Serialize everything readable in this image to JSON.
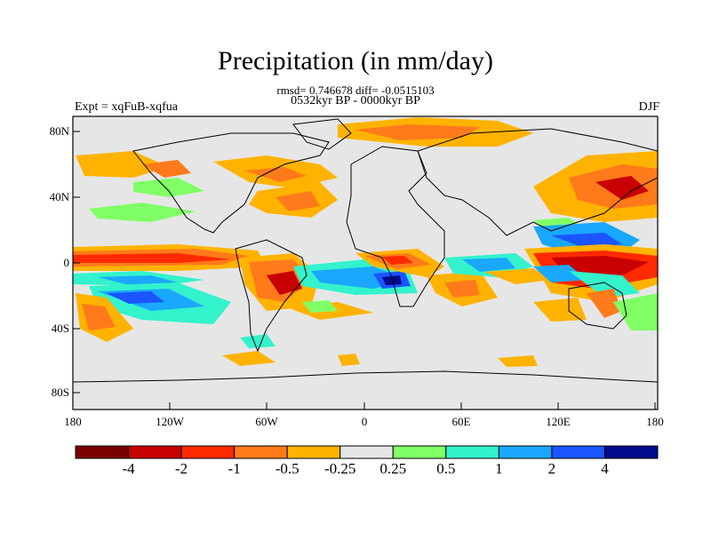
{
  "title": "Precipitation (in mm/day)",
  "subtitle_stats": "rmsd= 0.746678 diff= -0.0515103",
  "subtitle_period": "0532kyr BP - 0000kyr BP",
  "left_label": "Expt = xqFuB-xqfua",
  "right_label": "DJF",
  "y_ticks": [
    "80N",
    "40N",
    "0",
    "40S",
    "80S"
  ],
  "x_ticks": [
    "180",
    "120W",
    "60W",
    "0",
    "60E",
    "120E",
    "180"
  ],
  "colorbar": {
    "colors": [
      "#7a0000",
      "#c80000",
      "#ff2a00",
      "#ff7a1a",
      "#ffb300",
      "#e6e6e6",
      "#80ff66",
      "#33f2cc",
      "#1aa8ff",
      "#1a55ff",
      "#000a8c"
    ],
    "labels": [
      "-4",
      "-2",
      "-1",
      "-0.5",
      "-0.25",
      "0.25",
      "0.5",
      "1",
      "2",
      "4"
    ]
  }
}
